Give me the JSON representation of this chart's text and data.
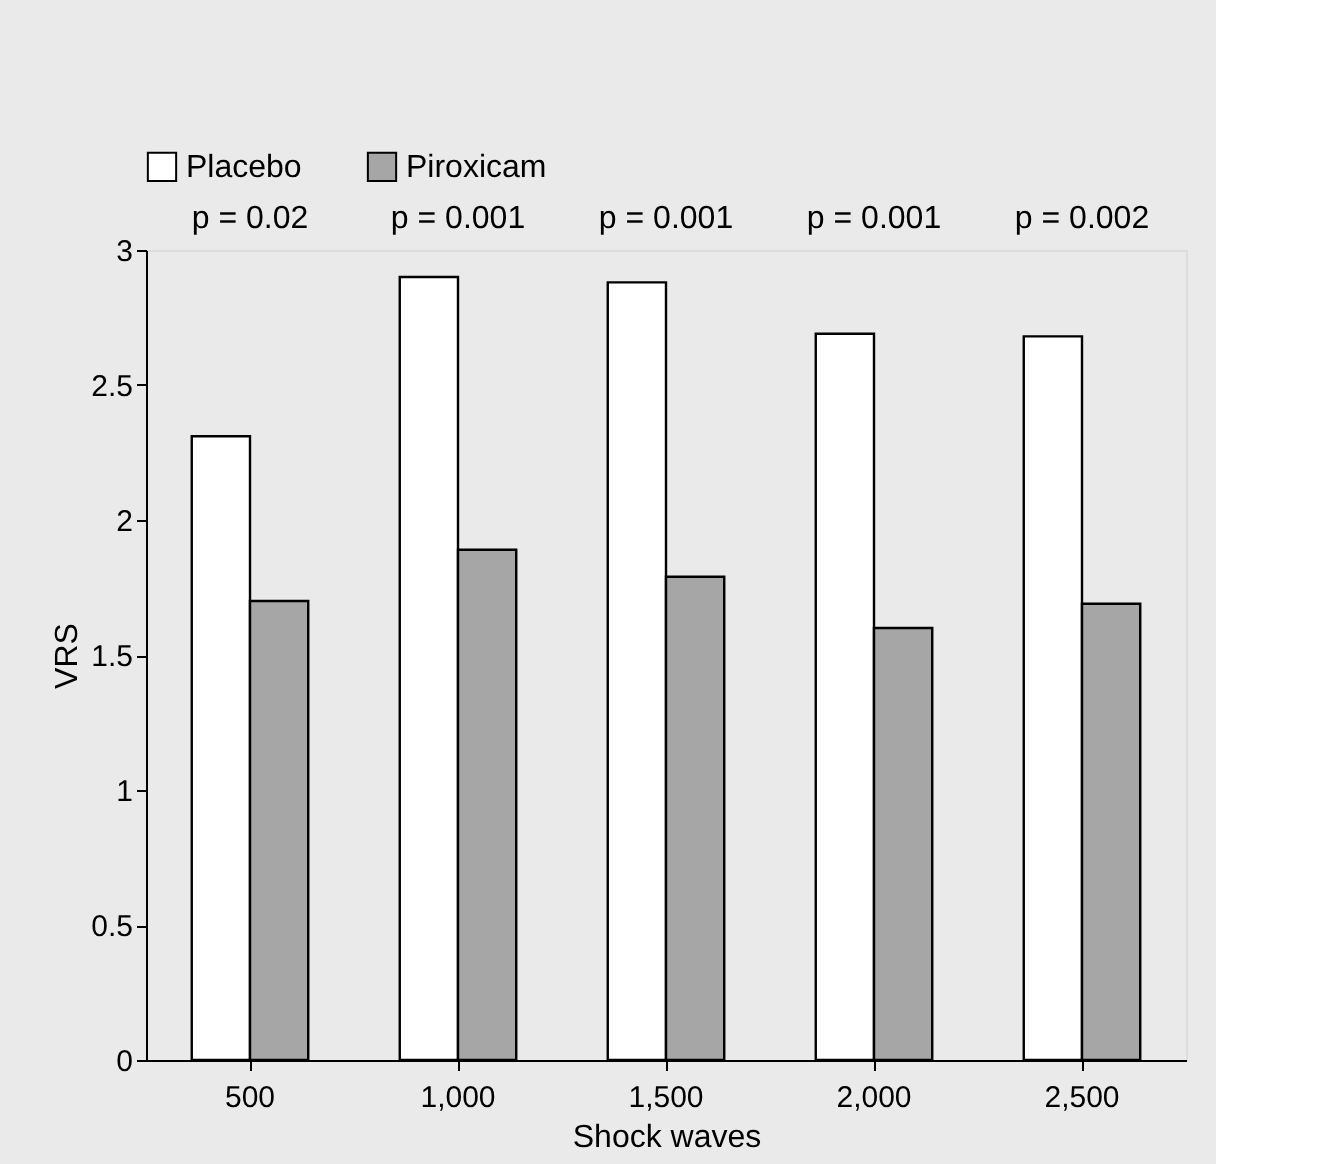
{
  "chart_data": {
    "type": "bar",
    "xlabel": "Shock waves",
    "ylabel": "VRS",
    "categories": [
      "500",
      "1,000",
      "1,500",
      "2,000",
      "2,500"
    ],
    "series": [
      {
        "name": "Placebo",
        "color": "#ffffff",
        "values": [
          2.31,
          2.9,
          2.88,
          2.69,
          2.68
        ]
      },
      {
        "name": "Piroxicam",
        "color": "#a6a6a6",
        "values": [
          1.7,
          1.89,
          1.79,
          1.6,
          1.69
        ]
      }
    ],
    "ylim": [
      0,
      3
    ],
    "yticks": [
      0,
      0.5,
      1,
      1.5,
      2,
      2.5,
      3
    ],
    "legend": "top left",
    "annotations": [
      "p = 0.02",
      "p = 0.001",
      "p = 0.001",
      "p = 0.001",
      "p = 0.002"
    ]
  }
}
